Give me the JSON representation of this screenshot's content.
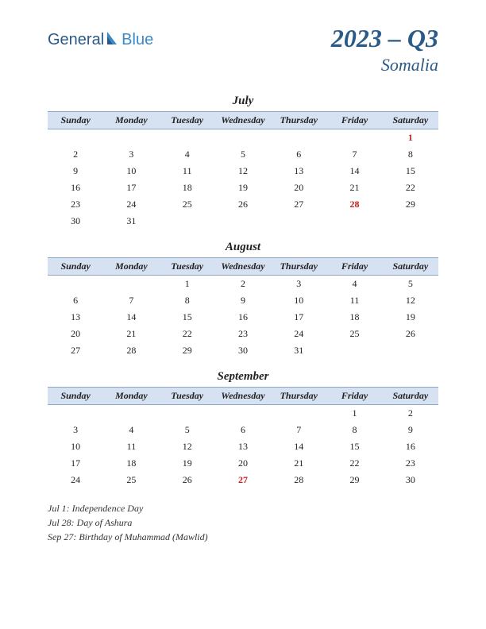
{
  "logo": {
    "part1": "General",
    "part2": "Blue"
  },
  "title": {
    "main": "2023 – Q3",
    "sub": "Somalia"
  },
  "colors": {
    "header_bg": "#d6e2f2",
    "header_border": "#8aa8c8",
    "brand_dark": "#2a5a8a",
    "brand_light": "#3a8ac8",
    "holiday": "#c02020",
    "text": "#222222",
    "bg": "#ffffff"
  },
  "day_headers": [
    "Sunday",
    "Monday",
    "Tuesday",
    "Wednesday",
    "Thursday",
    "Friday",
    "Saturday"
  ],
  "months": [
    {
      "name": "July",
      "weeks": [
        [
          "",
          "",
          "",
          "",
          "",
          "",
          "1"
        ],
        [
          "2",
          "3",
          "4",
          "5",
          "6",
          "7",
          "8"
        ],
        [
          "9",
          "10",
          "11",
          "12",
          "13",
          "14",
          "15"
        ],
        [
          "16",
          "17",
          "18",
          "19",
          "20",
          "21",
          "22"
        ],
        [
          "23",
          "24",
          "25",
          "26",
          "27",
          "28",
          "29"
        ],
        [
          "30",
          "31",
          "",
          "",
          "",
          "",
          ""
        ]
      ],
      "holidays": [
        "1",
        "28"
      ]
    },
    {
      "name": "August",
      "weeks": [
        [
          "",
          "",
          "1",
          "2",
          "3",
          "4",
          "5"
        ],
        [
          "6",
          "7",
          "8",
          "9",
          "10",
          "11",
          "12"
        ],
        [
          "13",
          "14",
          "15",
          "16",
          "17",
          "18",
          "19"
        ],
        [
          "20",
          "21",
          "22",
          "23",
          "24",
          "25",
          "26"
        ],
        [
          "27",
          "28",
          "29",
          "30",
          "31",
          "",
          ""
        ]
      ],
      "holidays": []
    },
    {
      "name": "September",
      "weeks": [
        [
          "",
          "",
          "",
          "",
          "",
          "1",
          "2"
        ],
        [
          "3",
          "4",
          "5",
          "6",
          "7",
          "8",
          "9"
        ],
        [
          "10",
          "11",
          "12",
          "13",
          "14",
          "15",
          "16"
        ],
        [
          "17",
          "18",
          "19",
          "20",
          "21",
          "22",
          "23"
        ],
        [
          "24",
          "25",
          "26",
          "27",
          "28",
          "29",
          "30"
        ]
      ],
      "holidays": [
        "27"
      ]
    }
  ],
  "holiday_list": [
    "Jul 1: Independence Day",
    "Jul 28: Day of Ashura",
    "Sep 27: Birthday of Muhammad (Mawlid)"
  ]
}
